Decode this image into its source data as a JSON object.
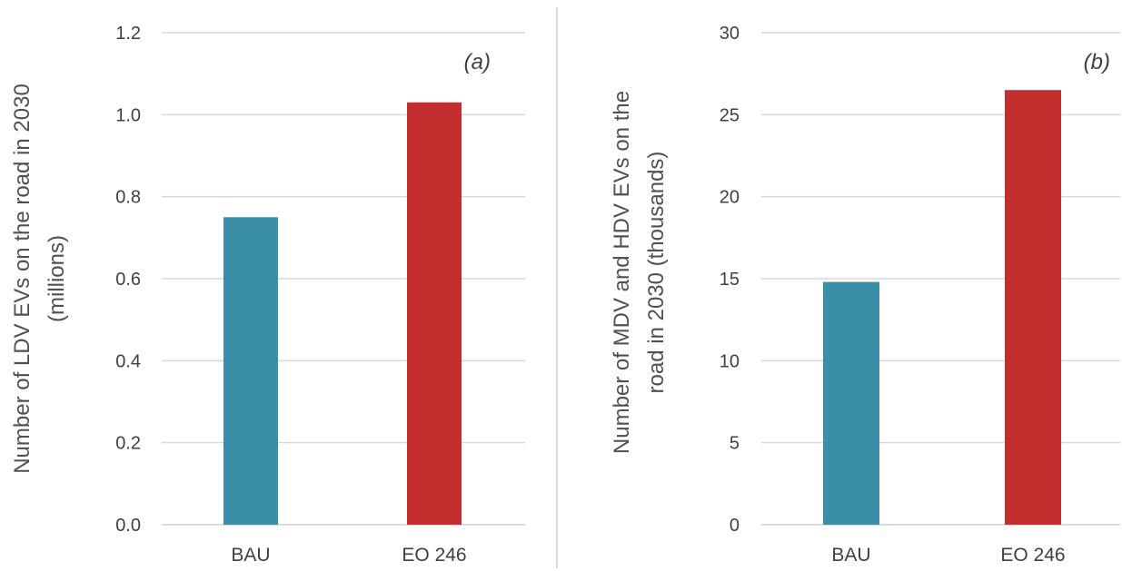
{
  "colors": {
    "bau": "#3a8fa6",
    "eo246": "#c22d2d",
    "grid": "#d9d9d9",
    "text": "#404040"
  },
  "chart_data": [
    {
      "type": "bar",
      "panel_tag": "(a)",
      "categories": [
        "BAU",
        "EO 246"
      ],
      "values": [
        0.75,
        1.03
      ],
      "ylabel_lines": [
        "Number of LDV EVs on the road in 2030",
        "(millions)"
      ],
      "yticks": [
        "0.0",
        "0.2",
        "0.4",
        "0.6",
        "0.8",
        "1.0",
        "1.2"
      ],
      "ylim": [
        0,
        1.2
      ],
      "grid": true
    },
    {
      "type": "bar",
      "panel_tag": "(b)",
      "categories": [
        "BAU",
        "EO 246"
      ],
      "values": [
        14.8,
        26.5
      ],
      "ylabel_lines": [
        "Number of MDV and HDV EVs on the",
        "road in 2030 (thousands)"
      ],
      "yticks": [
        "0",
        "5",
        "10",
        "15",
        "20",
        "25",
        "30"
      ],
      "ylim": [
        0,
        30
      ],
      "grid": true
    }
  ]
}
